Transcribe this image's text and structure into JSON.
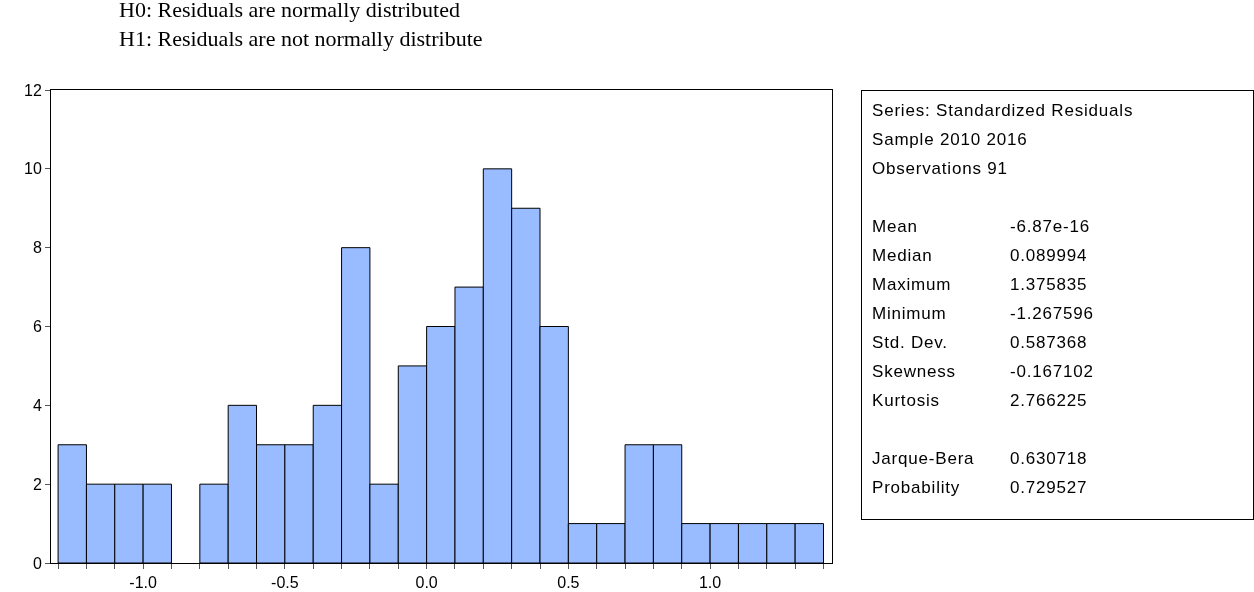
{
  "chart_data": [
    {
      "type": "histogram",
      "annotations": [
        "H0: Residuals are normally distributed",
        "H1: Residuals are not normally distribute"
      ],
      "bins": [
        -1.3,
        -1.2,
        -1.1,
        -1.0,
        -0.9,
        -0.8,
        -0.7,
        -0.6,
        -0.5,
        -0.4,
        -0.3,
        -0.2,
        -0.1,
        0.0,
        0.1,
        0.2,
        0.3,
        0.4,
        0.5,
        0.6,
        0.7,
        0.8,
        0.9,
        1.0,
        1.1,
        1.2,
        1.3,
        1.4
      ],
      "values": [
        3,
        2,
        2,
        2,
        0,
        2,
        4,
        3,
        3,
        4,
        8,
        2,
        5,
        6,
        7,
        10,
        9,
        6,
        1,
        1,
        3,
        3,
        1,
        1,
        1,
        1,
        1
      ],
      "color": "#99bbff",
      "xlim": [
        -1.325,
        1.43
      ],
      "ylim": [
        0,
        12
      ],
      "xticks": [
        {
          "value": -1.3,
          "label": null
        },
        {
          "value": -1.2,
          "label": null
        },
        {
          "value": -1.1,
          "label": null
        },
        {
          "value": -1.0,
          "label": "-1.0"
        },
        {
          "value": -0.9,
          "label": null
        },
        {
          "value": -0.8,
          "label": null
        },
        {
          "value": -0.7,
          "label": null
        },
        {
          "value": -0.6,
          "label": null
        },
        {
          "value": -0.5,
          "label": "-0.5"
        },
        {
          "value": -0.4,
          "label": null
        },
        {
          "value": -0.3,
          "label": null
        },
        {
          "value": -0.2,
          "label": null
        },
        {
          "value": -0.1,
          "label": null
        },
        {
          "value": 0.0,
          "label": "0.0"
        },
        {
          "value": 0.1,
          "label": null
        },
        {
          "value": 0.2,
          "label": null
        },
        {
          "value": 0.3,
          "label": null
        },
        {
          "value": 0.4,
          "label": null
        },
        {
          "value": 0.5,
          "label": "0.5"
        },
        {
          "value": 0.6,
          "label": null
        },
        {
          "value": 0.7,
          "label": null
        },
        {
          "value": 0.8,
          "label": null
        },
        {
          "value": 0.9,
          "label": null
        },
        {
          "value": 1.0,
          "label": "1.0"
        },
        {
          "value": 1.1,
          "label": null
        },
        {
          "value": 1.2,
          "label": null
        },
        {
          "value": 1.3,
          "label": null
        },
        {
          "value": 1.4,
          "label": null
        }
      ],
      "yticks": [
        0,
        2,
        4,
        6,
        8,
        10,
        12
      ],
      "grid": false
    },
    {
      "type": "other",
      "annotations": [
        "Series: Standardized Residuals",
        "Sample 2010 2016",
        "Observations 91",
        "Mean",
        "-6.87e-16",
        "Median",
        "0.089994",
        "Maximum",
        "1.375835",
        "Minimum",
        "-1.267596",
        "Std. Dev.",
        "0.587368",
        "Skewness",
        "-0.167102",
        "Kurtosis",
        "2.766225",
        "Jarque-Bera",
        "0.630718",
        "Probability",
        "0.729527"
      ]
    }
  ]
}
